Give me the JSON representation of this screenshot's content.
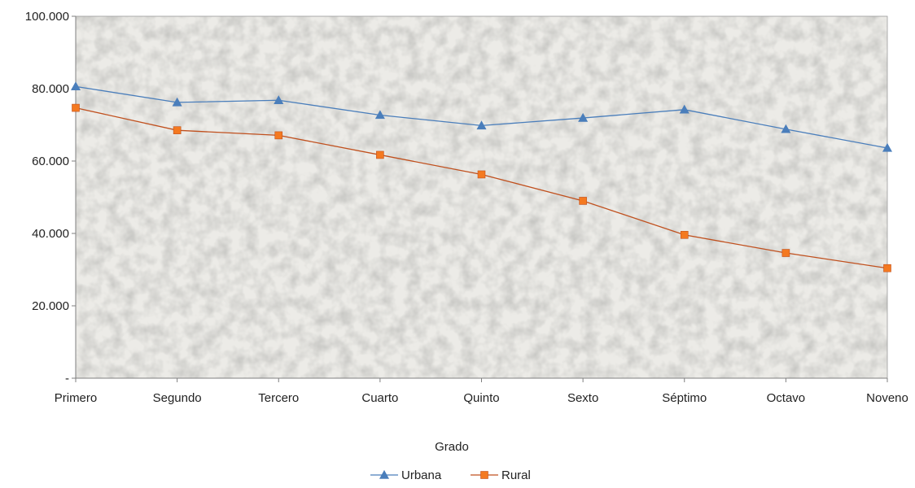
{
  "chart_data": {
    "type": "line",
    "title": "",
    "xlabel": "Grado",
    "ylabel": "",
    "categories": [
      "Primero",
      "Segundo",
      "Tercero",
      "Cuarto",
      "Quinto",
      "Sexto",
      "Séptimo",
      "Octavo",
      "Noveno"
    ],
    "ylim": [
      0,
      100000
    ],
    "y_ticks": [
      0,
      20000,
      40000,
      60000,
      80000,
      100000
    ],
    "y_tick_labels": [
      "-",
      "20.000",
      "40.000",
      "60.000",
      "80.000",
      "100.000"
    ],
    "grid": false,
    "legend_position": "bottom",
    "plot_background": "textured light gray",
    "series": [
      {
        "name": "Urbana",
        "color": "#4a7ebb",
        "marker": "triangle",
        "values": [
          80600,
          76200,
          76800,
          72700,
          69800,
          71900,
          74200,
          68800,
          63600
        ]
      },
      {
        "name": "Rural",
        "color": "#c0501e",
        "marker_color": "#f47920",
        "marker": "square",
        "values": [
          74700,
          68500,
          67100,
          61700,
          56300,
          49000,
          39600,
          34600,
          30400
        ]
      }
    ]
  }
}
